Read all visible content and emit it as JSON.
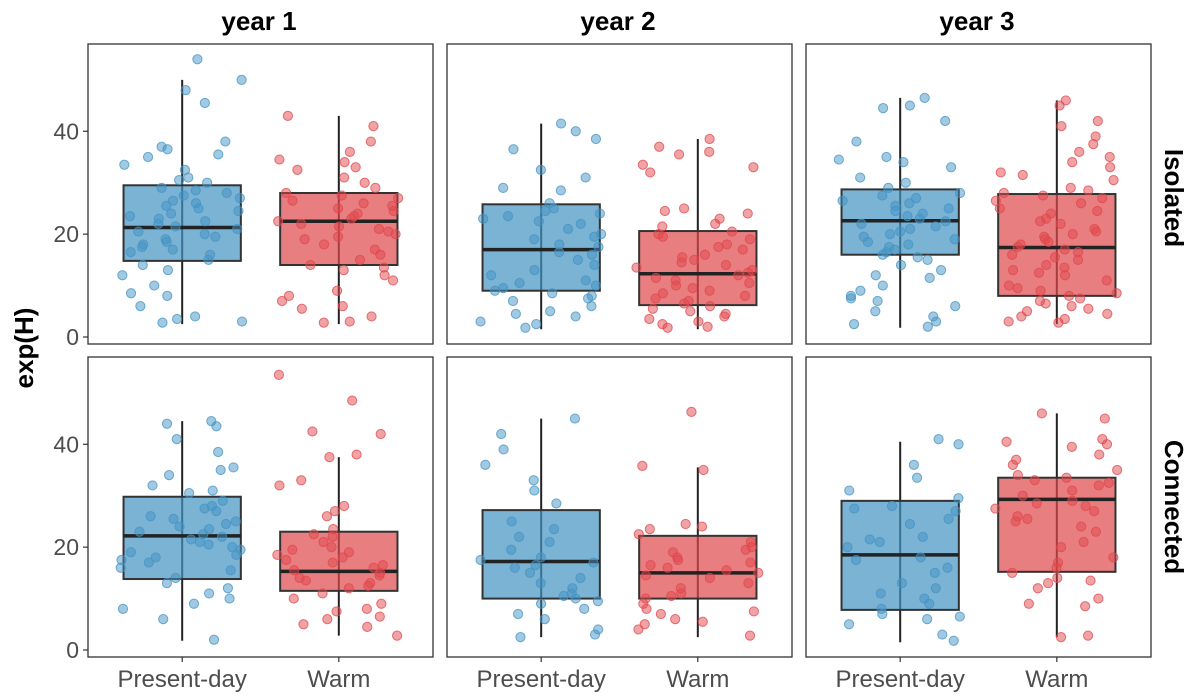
{
  "chart_data": {
    "type": "box",
    "ylabel": "exp(H)",
    "ylim": [
      0,
      56
    ],
    "yticks": [
      0,
      20,
      40
    ],
    "categories": [
      "Present-day",
      "Warm"
    ],
    "columns": [
      "year 1",
      "year 2",
      "year 3"
    ],
    "rows": [
      "Isolated",
      "Connected"
    ],
    "colors": {
      "Present-day": "#4393c3",
      "Warm": "#e0474c"
    },
    "grid": false,
    "panels": [
      {
        "column": "year 1",
        "row": "Isolated",
        "boxes": [
          {
            "category": "Present-day",
            "min": 2.5,
            "q1": 14.8,
            "median": 21.3,
            "q3": 29.5,
            "max": 50,
            "points": [
              54,
              50,
              48,
              45.5,
              38,
              37,
              36.5,
              35.5,
              35,
              33.5,
              32.5,
              31,
              30.5,
              30,
              29,
              28.5,
              28,
              27.5,
              27,
              26.5,
              26,
              25.5,
              25,
              24.5,
              24,
              23.5,
              23,
              22.5,
              22,
              21.5,
              21,
              20.5,
              20,
              19.5,
              19,
              18.5,
              18,
              17.5,
              17,
              16.5,
              16,
              15,
              14,
              13,
              12,
              10,
              8.5,
              8,
              6,
              4,
              3.5,
              3,
              2.8
            ]
          },
          {
            "category": "Warm",
            "min": 2.5,
            "q1": 14,
            "median": 22.5,
            "q3": 28,
            "max": 43,
            "points": [
              43,
              41,
              38,
              36,
              34.5,
              34,
              33,
              32.5,
              31,
              30,
              29,
              28,
              27.5,
              27,
              26.5,
              26,
              25.5,
              25,
              24.5,
              24,
              23.5,
              23,
              22.5,
              22,
              21.5,
              21,
              20.5,
              20,
              19.5,
              19,
              18,
              17,
              16,
              15,
              14,
              13.5,
              13,
              12,
              11,
              9,
              8,
              7,
              6,
              5.5,
              4,
              3,
              2.8
            ]
          }
        ]
      },
      {
        "column": "year 2",
        "row": "Isolated",
        "boxes": [
          {
            "category": "Present-day",
            "min": 1.5,
            "q1": 9,
            "median": 17,
            "q3": 25.8,
            "max": 41.5,
            "points": [
              41.5,
              40,
              38.5,
              36.5,
              32.5,
              31,
              29,
              28.5,
              26,
              25,
              24.5,
              24,
              23.5,
              23,
              22.5,
              22,
              21,
              20,
              19.5,
              19,
              18,
              17.5,
              16.5,
              16,
              15,
              14,
              13,
              12,
              11,
              10.5,
              10,
              9.5,
              9,
              8.5,
              8,
              7.5,
              7,
              6,
              5,
              4.5,
              4,
              3,
              2.5,
              1.8
            ]
          },
          {
            "category": "Warm",
            "min": 1.5,
            "q1": 6.2,
            "median": 12.3,
            "q3": 20.6,
            "max": 38.5,
            "points": [
              38.5,
              37,
              36,
              35.5,
              33.5,
              33,
              32,
              25,
              24.5,
              24,
              23,
              22,
              21.5,
              20.5,
              20,
              19.5,
              19,
              18,
              17.5,
              17,
              16,
              15.5,
              15,
              14.5,
              14,
              13.5,
              13,
              12.5,
              12,
              11.5,
              11,
              10.5,
              10,
              9.5,
              9,
              8.5,
              8,
              7.5,
              7,
              6.5,
              6,
              5.5,
              5,
              4.5,
              4,
              3.5,
              3,
              2.5,
              2,
              1.8
            ]
          }
        ]
      },
      {
        "column": "year 3",
        "row": "Isolated",
        "boxes": [
          {
            "category": "Present-day",
            "min": 1.8,
            "q1": 16,
            "median": 22.6,
            "q3": 28.7,
            "max": 46.5,
            "points": [
              46.5,
              45,
              44.5,
              42,
              38,
              35,
              34.5,
              34,
              33,
              31,
              30,
              29,
              28,
              27.5,
              27,
              26.5,
              26,
              25.5,
              25,
              24.5,
              24,
              23.5,
              23,
              22.5,
              22,
              21.5,
              21,
              20.5,
              20,
              19.5,
              19,
              18.5,
              18,
              17.5,
              17,
              16.5,
              16,
              15.5,
              15,
              14,
              13,
              12,
              11.5,
              10,
              9,
              8,
              7.5,
              7,
              6,
              5,
              4,
              3,
              2.5,
              2
            ]
          },
          {
            "category": "Warm",
            "min": 2.5,
            "q1": 8,
            "median": 17.4,
            "q3": 27.8,
            "max": 46,
            "points": [
              46,
              45,
              42,
              41,
              39,
              37.5,
              36,
              35,
              34,
              33,
              32,
              31.5,
              30.5,
              29,
              28.5,
              28,
              27.5,
              27,
              26.5,
              26,
              25,
              24.5,
              24,
              23,
              22.5,
              22,
              21,
              20.5,
              20,
              19.5,
              19,
              18.5,
              18,
              17.5,
              17,
              16.5,
              16,
              15.5,
              15,
              14,
              13.5,
              13,
              12.5,
              12,
              11,
              10,
              9.5,
              9,
              8.5,
              8,
              7.5,
              7,
              6.5,
              6,
              5.5,
              5,
              4.5,
              4,
              3.5,
              3,
              2.8
            ]
          }
        ]
      },
      {
        "column": "year 1",
        "row": "Connected",
        "boxes": [
          {
            "category": "Present-day",
            "min": 1.8,
            "q1": 13.8,
            "median": 22.2,
            "q3": 29.8,
            "max": 44.5,
            "points": [
              44.5,
              44,
              43.5,
              41,
              38.5,
              35.5,
              35,
              34,
              32,
              31,
              30.5,
              29,
              28,
              27.5,
              27,
              26,
              25.5,
              25,
              24.5,
              24,
              23.5,
              23,
              22.5,
              22,
              21.5,
              21,
              20.5,
              20,
              19.5,
              19,
              18.5,
              18,
              17.5,
              17,
              16,
              15.5,
              14,
              13,
              12,
              11,
              10,
              9,
              8,
              6,
              2
            ]
          },
          {
            "category": "Warm",
            "min": 2.8,
            "q1": 11.5,
            "median": 15.3,
            "q3": 23,
            "max": 37.5,
            "points": [
              53.5,
              48.5,
              42.5,
              42,
              38,
              37.5,
              33,
              32,
              28,
              27,
              26,
              23.5,
              22.5,
              22,
              21,
              20,
              19.5,
              19,
              18.5,
              18,
              17.5,
              17,
              16.5,
              16,
              15.5,
              15,
              14.5,
              14,
              13.5,
              13,
              12.5,
              12,
              11,
              10,
              9,
              8,
              7.5,
              6.5,
              6,
              5,
              4.5,
              2.8
            ]
          }
        ]
      },
      {
        "column": "year 2",
        "row": "Connected",
        "boxes": [
          {
            "category": "Present-day",
            "min": 2.5,
            "q1": 10,
            "median": 17.2,
            "q3": 27.2,
            "max": 45,
            "points": [
              45,
              42,
              39,
              36,
              33,
              31,
              28.5,
              25,
              23.5,
              22,
              21,
              19.5,
              18,
              17.5,
              17,
              16.5,
              16,
              15,
              14,
              13,
              12,
              11,
              10.5,
              10,
              9.5,
              9,
              8,
              7,
              6,
              4,
              3,
              2.5
            ]
          },
          {
            "category": "Warm",
            "min": 2.5,
            "q1": 10,
            "median": 15,
            "q3": 22.2,
            "max": 35.5,
            "points": [
              46.3,
              35.8,
              35,
              24.5,
              24,
              23.5,
              22.5,
              21,
              20,
              19.5,
              19,
              18,
              17.5,
              17,
              16.5,
              16,
              15.5,
              15,
              14.5,
              14,
              13,
              12,
              11,
              10.5,
              10,
              9,
              8,
              7.5,
              7,
              6,
              5.5,
              5,
              4,
              2.8
            ]
          }
        ]
      },
      {
        "column": "year 3",
        "row": "Connected",
        "boxes": [
          {
            "category": "Present-day",
            "min": 1.5,
            "q1": 7.8,
            "median": 18.5,
            "q3": 29,
            "max": 40.5,
            "points": [
              41,
              40,
              36,
              33.5,
              31,
              29.5,
              28,
              27.5,
              27,
              25.5,
              24.5,
              22,
              21.5,
              21,
              20,
              18,
              17.5,
              16,
              15,
              13,
              12,
              11,
              10,
              9,
              8,
              7,
              6.5,
              6,
              5,
              3,
              1.8
            ]
          },
          {
            "category": "Warm",
            "min": 2.5,
            "q1": 15.2,
            "median": 29.3,
            "q3": 33.5,
            "max": 46,
            "points": [
              46,
              45,
              41,
              40.5,
              40,
              39.5,
              38,
              37,
              36,
              35,
              34,
              33.5,
              33,
              32.5,
              32,
              31,
              30,
              29,
              28.5,
              28,
              27.5,
              27,
              26,
              25.5,
              25,
              24,
              23,
              21,
              20,
              18,
              17,
              16,
              15,
              14,
              13.5,
              13,
              12,
              10,
              9,
              8.5,
              2.8,
              2.5
            ]
          }
        ]
      }
    ]
  }
}
